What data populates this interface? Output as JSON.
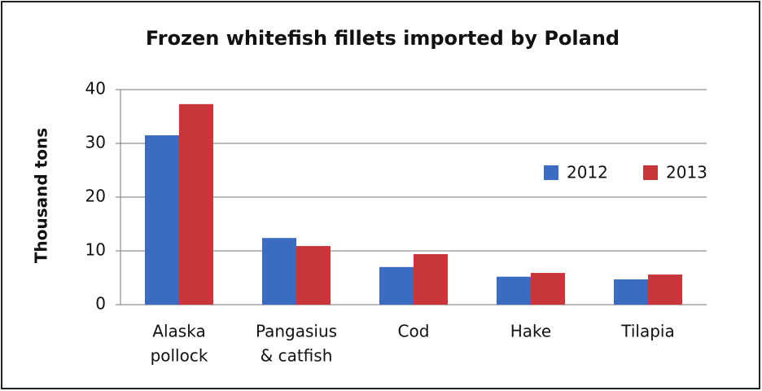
{
  "chart_data": {
    "type": "bar",
    "title": "Frozen whitefish fillets imported by Poland",
    "y_label": "Thousand tons",
    "categories": [
      [
        "Alaska",
        "pollock"
      ],
      [
        "Pangasius",
        "& catfish"
      ],
      [
        "Cod"
      ],
      [
        "Hake"
      ],
      [
        "Tilapia"
      ]
    ],
    "series": [
      {
        "name": "2012",
        "color": "#3a6cc2",
        "values": [
          31.5,
          12.4,
          7.0,
          5.2,
          4.7
        ]
      },
      {
        "name": "2013",
        "color": "#c8363a",
        "values": [
          37.3,
          10.9,
          9.4,
          5.9,
          5.6
        ]
      }
    ],
    "ylim": [
      0,
      40
    ],
    "yticks": [
      0,
      10,
      20,
      30,
      40
    ],
    "grid": true,
    "legend": "right"
  }
}
